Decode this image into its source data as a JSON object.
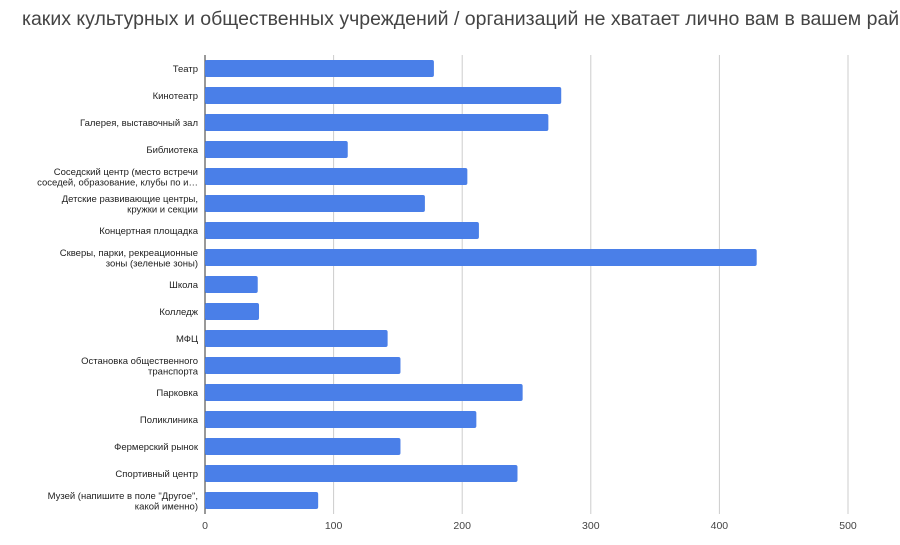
{
  "chart_data": {
    "type": "bar",
    "orientation": "horizontal",
    "title": "каких культурных и общественных учреждений / организаций не хватает лично вам в вашем районе?",
    "categories": [
      [
        "Театр"
      ],
      [
        "Кинотеатр"
      ],
      [
        "Галерея, выставочный зал"
      ],
      [
        "Библиотека"
      ],
      [
        "Соседский центр (место встречи",
        "соседей, образование, клубы по и…"
      ],
      [
        "Детские развивающие центры,",
        "кружки и секции"
      ],
      [
        "Концертная площадка"
      ],
      [
        "Скверы, парки, рекреационные",
        "зоны (зеленые зоны)"
      ],
      [
        "Школа"
      ],
      [
        "Колледж"
      ],
      [
        "МФЦ"
      ],
      [
        "Остановка общественного",
        "транспорта"
      ],
      [
        "Парковка"
      ],
      [
        "Поликлиника"
      ],
      [
        "Фермерский рынок"
      ],
      [
        "Спортивный центр"
      ],
      [
        "Музей (напишите в поле \"Другое\",",
        "какой именно)"
      ]
    ],
    "values": [
      178,
      277,
      267,
      111,
      204,
      171,
      213,
      429,
      41,
      42,
      142,
      152,
      247,
      211,
      152,
      243,
      88
    ],
    "xlim": [
      0,
      500
    ],
    "xticks": [
      0,
      100,
      200,
      300,
      400,
      500
    ],
    "grid": true,
    "legend": "none",
    "bar_color": "#4a7fe8",
    "grid_color": "#cccccc"
  }
}
